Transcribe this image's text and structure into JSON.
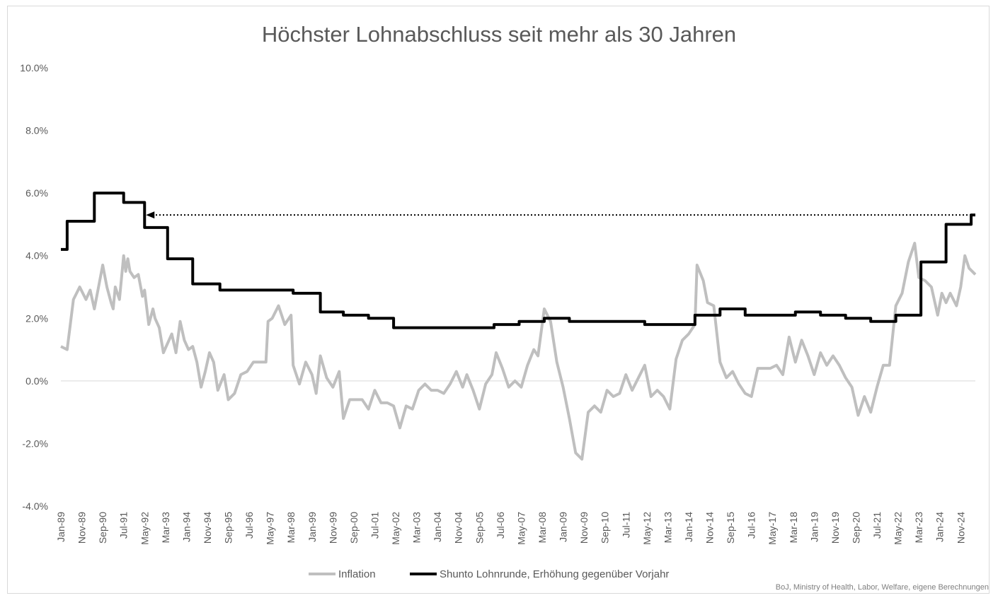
{
  "chart_data": {
    "type": "line",
    "title": "Höchster Lohnabschluss seit mehr als 30 Jahren",
    "xlabel": "",
    "ylabel": "",
    "y_unit": "percent",
    "ylim": [
      -4.0,
      10.0
    ],
    "y_ticks": [
      "-4.0%",
      "-2.0%",
      "0.0%",
      "2.0%",
      "4.0%",
      "6.0%",
      "8.0%",
      "10.0%"
    ],
    "x_range": [
      "1989-01",
      "2025-06"
    ],
    "x_ticks": [
      "Jan-89",
      "Nov-89",
      "Sep-90",
      "Jul-91",
      "May-92",
      "Mar-93",
      "Jan-94",
      "Nov-94",
      "Sep-95",
      "Jul-96",
      "May-97",
      "Mar-98",
      "Jan-99",
      "Nov-99",
      "Sep-00",
      "Jul-01",
      "May-02",
      "Mar-03",
      "Jan-04",
      "Nov-04",
      "Sep-05",
      "Jul-06",
      "May-07",
      "Mar-08",
      "Jan-09",
      "Nov-09",
      "Sep-10",
      "Jul-11",
      "May-12",
      "Mar-13",
      "Jan-14",
      "Nov-14",
      "Sep-15",
      "Jul-16",
      "May-17",
      "Mar-18",
      "Jan-19",
      "Nov-19",
      "Sep-20",
      "Jul-21",
      "May-22",
      "Mar-23",
      "Jan-24",
      "Nov-24"
    ],
    "grid": false,
    "legend_position": "bottom",
    "series": [
      {
        "name": "Inflation",
        "color": "#bfbfbf",
        "points": [
          [
            "1989-01",
            1.1
          ],
          [
            "1989-04",
            1.0
          ],
          [
            "1989-07",
            2.6
          ],
          [
            "1989-10",
            3.0
          ],
          [
            "1990-01",
            2.6
          ],
          [
            "1990-03",
            2.9
          ],
          [
            "1990-05",
            2.3
          ],
          [
            "1990-07",
            3.0
          ],
          [
            "1990-09",
            3.7
          ],
          [
            "1990-11",
            3.0
          ],
          [
            "1991-01",
            2.5
          ],
          [
            "1991-02",
            2.3
          ],
          [
            "1991-03",
            3.0
          ],
          [
            "1991-05",
            2.6
          ],
          [
            "1991-07",
            4.0
          ],
          [
            "1991-08",
            3.5
          ],
          [
            "1991-09",
            3.9
          ],
          [
            "1991-10",
            3.5
          ],
          [
            "1991-12",
            3.3
          ],
          [
            "1992-02",
            3.4
          ],
          [
            "1992-04",
            2.7
          ],
          [
            "1992-05",
            2.9
          ],
          [
            "1992-07",
            1.8
          ],
          [
            "1992-09",
            2.3
          ],
          [
            "1992-10",
            2.0
          ],
          [
            "1992-12",
            1.7
          ],
          [
            "1993-02",
            0.9
          ],
          [
            "1993-04",
            1.2
          ],
          [
            "1993-06",
            1.5
          ],
          [
            "1993-08",
            0.9
          ],
          [
            "1993-10",
            1.9
          ],
          [
            "1993-12",
            1.3
          ],
          [
            "1994-02",
            1.0
          ],
          [
            "1994-04",
            1.1
          ],
          [
            "1994-06",
            0.6
          ],
          [
            "1994-08",
            -0.2
          ],
          [
            "1994-10",
            0.3
          ],
          [
            "1994-12",
            0.9
          ],
          [
            "1995-02",
            0.6
          ],
          [
            "1995-04",
            -0.3
          ],
          [
            "1995-07",
            0.2
          ],
          [
            "1995-09",
            -0.6
          ],
          [
            "1995-12",
            -0.4
          ],
          [
            "1996-03",
            0.2
          ],
          [
            "1996-06",
            0.3
          ],
          [
            "1996-09",
            0.6
          ],
          [
            "1996-12",
            0.6
          ],
          [
            "1997-03",
            0.6
          ],
          [
            "1997-04",
            1.9
          ],
          [
            "1997-06",
            2.0
          ],
          [
            "1997-09",
            2.4
          ],
          [
            "1997-12",
            1.8
          ],
          [
            "1998-03",
            2.1
          ],
          [
            "1998-04",
            0.5
          ],
          [
            "1998-07",
            -0.1
          ],
          [
            "1998-10",
            0.6
          ],
          [
            "1999-01",
            0.2
          ],
          [
            "1999-03",
            -0.4
          ],
          [
            "1999-05",
            0.8
          ],
          [
            "1999-08",
            0.1
          ],
          [
            "1999-11",
            -0.2
          ],
          [
            "2000-02",
            0.3
          ],
          [
            "2000-04",
            -1.2
          ],
          [
            "2000-07",
            -0.6
          ],
          [
            "2000-10",
            -0.6
          ],
          [
            "2001-01",
            -0.6
          ],
          [
            "2001-04",
            -0.9
          ],
          [
            "2001-07",
            -0.3
          ],
          [
            "2001-10",
            -0.7
          ],
          [
            "2002-01",
            -0.7
          ],
          [
            "2002-04",
            -0.8
          ],
          [
            "2002-07",
            -1.5
          ],
          [
            "2002-10",
            -0.8
          ],
          [
            "2003-01",
            -0.9
          ],
          [
            "2003-04",
            -0.3
          ],
          [
            "2003-07",
            -0.1
          ],
          [
            "2003-10",
            -0.3
          ],
          [
            "2004-01",
            -0.3
          ],
          [
            "2004-04",
            -0.4
          ],
          [
            "2004-07",
            -0.1
          ],
          [
            "2004-10",
            0.3
          ],
          [
            "2005-01",
            -0.2
          ],
          [
            "2005-03",
            0.2
          ],
          [
            "2005-06",
            -0.3
          ],
          [
            "2005-09",
            -0.9
          ],
          [
            "2005-12",
            -0.1
          ],
          [
            "2006-03",
            0.2
          ],
          [
            "2006-05",
            0.9
          ],
          [
            "2006-08",
            0.4
          ],
          [
            "2006-11",
            -0.2
          ],
          [
            "2007-02",
            0.0
          ],
          [
            "2007-05",
            -0.2
          ],
          [
            "2007-08",
            0.5
          ],
          [
            "2007-11",
            1.0
          ],
          [
            "2008-01",
            0.8
          ],
          [
            "2008-04",
            2.3
          ],
          [
            "2008-07",
            1.9
          ],
          [
            "2008-10",
            0.6
          ],
          [
            "2009-01",
            -0.2
          ],
          [
            "2009-04",
            -1.2
          ],
          [
            "2009-07",
            -2.3
          ],
          [
            "2009-10",
            -2.5
          ],
          [
            "2010-01",
            -1.0
          ],
          [
            "2010-04",
            -0.8
          ],
          [
            "2010-07",
            -1.0
          ],
          [
            "2010-10",
            -0.3
          ],
          [
            "2011-01",
            -0.5
          ],
          [
            "2011-04",
            -0.4
          ],
          [
            "2011-07",
            0.2
          ],
          [
            "2011-10",
            -0.3
          ],
          [
            "2012-01",
            0.1
          ],
          [
            "2012-04",
            0.5
          ],
          [
            "2012-07",
            -0.5
          ],
          [
            "2012-10",
            -0.3
          ],
          [
            "2013-01",
            -0.5
          ],
          [
            "2013-04",
            -0.9
          ],
          [
            "2013-07",
            0.7
          ],
          [
            "2013-10",
            1.3
          ],
          [
            "2014-01",
            1.5
          ],
          [
            "2014-04",
            1.8
          ],
          [
            "2014-05",
            3.7
          ],
          [
            "2014-08",
            3.2
          ],
          [
            "2014-10",
            2.5
          ],
          [
            "2015-01",
            2.4
          ],
          [
            "2015-04",
            0.6
          ],
          [
            "2015-07",
            0.1
          ],
          [
            "2015-10",
            0.3
          ],
          [
            "2016-01",
            -0.1
          ],
          [
            "2016-04",
            -0.4
          ],
          [
            "2016-07",
            -0.5
          ],
          [
            "2016-10",
            0.4
          ],
          [
            "2017-01",
            0.4
          ],
          [
            "2017-04",
            0.4
          ],
          [
            "2017-07",
            0.5
          ],
          [
            "2017-10",
            0.2
          ],
          [
            "2018-01",
            1.4
          ],
          [
            "2018-04",
            0.6
          ],
          [
            "2018-07",
            1.3
          ],
          [
            "2018-10",
            0.8
          ],
          [
            "2019-01",
            0.2
          ],
          [
            "2019-04",
            0.9
          ],
          [
            "2019-07",
            0.5
          ],
          [
            "2019-10",
            0.8
          ],
          [
            "2020-01",
            0.5
          ],
          [
            "2020-04",
            0.1
          ],
          [
            "2020-07",
            -0.2
          ],
          [
            "2020-10",
            -1.1
          ],
          [
            "2021-01",
            -0.5
          ],
          [
            "2021-04",
            -1.0
          ],
          [
            "2021-07",
            -0.2
          ],
          [
            "2021-10",
            0.5
          ],
          [
            "2022-01",
            0.5
          ],
          [
            "2022-04",
            2.4
          ],
          [
            "2022-07",
            2.8
          ],
          [
            "2022-10",
            3.8
          ],
          [
            "2023-01",
            4.4
          ],
          [
            "2023-03",
            3.3
          ],
          [
            "2023-06",
            3.2
          ],
          [
            "2023-09",
            3.0
          ],
          [
            "2023-12",
            2.1
          ],
          [
            "2024-02",
            2.8
          ],
          [
            "2024-04",
            2.5
          ],
          [
            "2024-06",
            2.8
          ],
          [
            "2024-09",
            2.4
          ],
          [
            "2024-11",
            3.0
          ],
          [
            "2025-01",
            4.0
          ],
          [
            "2025-03",
            3.6
          ],
          [
            "2025-06",
            3.4
          ]
        ]
      },
      {
        "name": "Shunto Lohnrunde, Erhöhung gegenüber Vorjahr",
        "color": "#000000",
        "points": [
          [
            "1989-01",
            4.2
          ],
          [
            "1989-04",
            4.2
          ],
          [
            "1989-04",
            5.1
          ],
          [
            "1990-05",
            5.1
          ],
          [
            "1990-05",
            6.0
          ],
          [
            "1991-07",
            6.0
          ],
          [
            "1991-07",
            5.7
          ],
          [
            "1992-05",
            5.7
          ],
          [
            "1992-05",
            4.9
          ],
          [
            "1993-04",
            4.9
          ],
          [
            "1993-04",
            3.9
          ],
          [
            "1994-04",
            3.9
          ],
          [
            "1994-04",
            3.1
          ],
          [
            "1995-05",
            3.1
          ],
          [
            "1995-05",
            2.9
          ],
          [
            "1996-04",
            2.9
          ],
          [
            "1996-04",
            2.9
          ],
          [
            "1998-04",
            2.9
          ],
          [
            "1998-04",
            2.8
          ],
          [
            "1999-05",
            2.8
          ],
          [
            "1999-05",
            2.2
          ],
          [
            "2000-04",
            2.2
          ],
          [
            "2000-04",
            2.1
          ],
          [
            "2001-04",
            2.1
          ],
          [
            "2001-04",
            2.0
          ],
          [
            "2002-04",
            2.0
          ],
          [
            "2002-04",
            1.7
          ],
          [
            "2005-04",
            1.7
          ],
          [
            "2005-04",
            1.7
          ],
          [
            "2006-04",
            1.7
          ],
          [
            "2006-04",
            1.8
          ],
          [
            "2007-04",
            1.8
          ],
          [
            "2007-04",
            1.9
          ],
          [
            "2008-04",
            1.9
          ],
          [
            "2008-04",
            2.0
          ],
          [
            "2009-04",
            2.0
          ],
          [
            "2009-04",
            1.9
          ],
          [
            "2012-04",
            1.9
          ],
          [
            "2012-04",
            1.8
          ],
          [
            "2014-04",
            1.8
          ],
          [
            "2014-04",
            2.1
          ],
          [
            "2015-04",
            2.1
          ],
          [
            "2015-04",
            2.3
          ],
          [
            "2016-04",
            2.3
          ],
          [
            "2016-04",
            2.1
          ],
          [
            "2017-04",
            2.1
          ],
          [
            "2017-04",
            2.1
          ],
          [
            "2018-04",
            2.1
          ],
          [
            "2018-04",
            2.2
          ],
          [
            "2019-04",
            2.2
          ],
          [
            "2019-04",
            2.1
          ],
          [
            "2020-04",
            2.1
          ],
          [
            "2020-04",
            2.0
          ],
          [
            "2021-04",
            2.0
          ],
          [
            "2021-04",
            1.9
          ],
          [
            "2022-04",
            1.9
          ],
          [
            "2022-04",
            2.1
          ],
          [
            "2023-04",
            2.1
          ],
          [
            "2023-04",
            3.8
          ],
          [
            "2024-04",
            3.8
          ],
          [
            "2024-04",
            5.0
          ],
          [
            "2025-04",
            5.0
          ],
          [
            "2025-04",
            5.3
          ],
          [
            "2025-06",
            5.3
          ]
        ]
      }
    ],
    "annotations": [
      {
        "type": "dotted-arrow",
        "from": [
          "2025-06",
          5.3
        ],
        "to": [
          "1992-05",
          5.3
        ]
      }
    ],
    "source": "BoJ, Ministry of Health, Labor, Welfare, eigene Berechnungen"
  }
}
